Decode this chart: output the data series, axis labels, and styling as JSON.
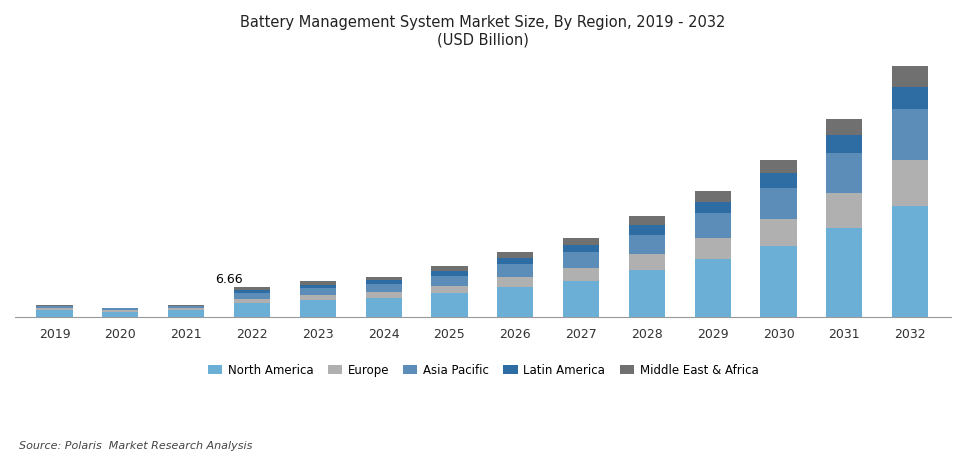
{
  "title_line1": "Battery Management System Market Size, By Region, 2019 - 2032",
  "title_line2": "(USD Billion)",
  "years": [
    2019,
    2020,
    2021,
    2022,
    2023,
    2024,
    2025,
    2026,
    2027,
    2028,
    2029,
    2030,
    2031,
    2032
  ],
  "regions": [
    "North America",
    "Europe",
    "Asia Pacific",
    "Latin America",
    "Middle East & Africa"
  ],
  "colors": [
    "#6baed6",
    "#b0b0b0",
    "#5b8db8",
    "#2e6da4",
    "#707070"
  ],
  "data": {
    "North America": [
      1.5,
      1.2,
      1.5,
      3.2,
      3.8,
      4.3,
      5.4,
      6.8,
      8.2,
      10.5,
      13.0,
      16.0,
      20.0,
      25.0
    ],
    "Europe": [
      0.4,
      0.3,
      0.4,
      0.9,
      1.1,
      1.3,
      1.6,
      2.2,
      2.8,
      3.6,
      4.8,
      6.2,
      8.0,
      10.5
    ],
    "Asia Pacific": [
      0.5,
      0.4,
      0.5,
      1.3,
      1.6,
      1.8,
      2.3,
      2.9,
      3.6,
      4.5,
      5.6,
      7.0,
      9.0,
      11.5
    ],
    "Latin America": [
      0.15,
      0.12,
      0.15,
      0.66,
      0.78,
      0.9,
      1.1,
      1.4,
      1.7,
      2.1,
      2.6,
      3.2,
      4.0,
      5.0
    ],
    "Middle East & Africa": [
      0.1,
      0.08,
      0.1,
      0.61,
      0.72,
      0.82,
      1.0,
      1.3,
      1.6,
      2.0,
      2.5,
      3.0,
      3.8,
      4.7
    ]
  },
  "annotation_year": 2022,
  "annotation_text": "6.66",
  "source_text": "Source: Polaris  Market Research Analysis",
  "bar_width": 0.55,
  "background_color": "#ffffff",
  "ylim": [
    0,
    58
  ]
}
